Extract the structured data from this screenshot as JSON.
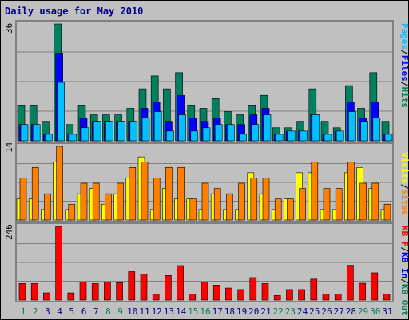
{
  "title": "Daily usage for May 2010",
  "colors": {
    "hits": "#00805c",
    "files": "#0000ff",
    "pages": "#00c0ff",
    "visits": "#ffff00",
    "sites": "#ff8000",
    "kbin": "#ff0000",
    "frame_bg": "#c0c0c0",
    "weekend_label": "#00805c",
    "weekday_label": "#00008b"
  },
  "chart_data": [
    {
      "type": "bar",
      "panel": "top",
      "ymax_label": "36",
      "ymax": 36,
      "legend": [
        "Pages",
        "/",
        "Files",
        "/",
        "Hits"
      ],
      "categories": [
        "1",
        "2",
        "3",
        "4",
        "5",
        "6",
        "7",
        "8",
        "9",
        "10",
        "11",
        "12",
        "13",
        "14",
        "15",
        "16",
        "17",
        "18",
        "19",
        "20",
        "21",
        "22",
        "23",
        "24",
        "25",
        "26",
        "27",
        "28",
        "29",
        "30",
        "31"
      ],
      "series": [
        {
          "name": "Hits",
          "values": [
            11,
            11,
            6,
            36,
            5,
            11,
            8,
            8,
            8,
            10,
            16,
            20,
            16,
            21,
            11,
            10,
            13,
            9,
            8,
            11,
            14,
            4,
            4,
            6,
            16,
            6,
            4,
            17,
            10,
            21,
            6
          ]
        },
        {
          "name": "Files",
          "values": [
            5,
            5,
            2,
            27,
            2,
            7,
            6,
            6,
            6,
            6,
            10,
            12,
            6,
            14,
            7,
            6,
            7,
            5,
            5,
            8,
            10,
            2,
            3,
            3,
            8,
            2,
            3,
            12,
            7,
            12,
            2
          ]
        },
        {
          "name": "Pages",
          "values": [
            5,
            5,
            2,
            18,
            2,
            4,
            6,
            6,
            6,
            6,
            7,
            9,
            3,
            8,
            3,
            4,
            5,
            5,
            2,
            5,
            8,
            2,
            3,
            3,
            8,
            2,
            3,
            9,
            6,
            7,
            2
          ]
        }
      ]
    },
    {
      "type": "bar",
      "panel": "middle",
      "ymax_label": "14",
      "ymax": 14,
      "legend": [
        "Visits",
        "/",
        "Sites"
      ],
      "categories": [
        "1",
        "2",
        "3",
        "4",
        "5",
        "6",
        "7",
        "8",
        "9",
        "10",
        "11",
        "12",
        "13",
        "14",
        "15",
        "16",
        "17",
        "18",
        "19",
        "20",
        "21",
        "22",
        "23",
        "24",
        "25",
        "26",
        "27",
        "28",
        "29",
        "30",
        "31"
      ],
      "series": [
        {
          "name": "Visits",
          "values": [
            4,
            4,
            2,
            11,
            2,
            5,
            6,
            3,
            5,
            8,
            12,
            2,
            6,
            4,
            4,
            2,
            5,
            2,
            2,
            9,
            5,
            2,
            4,
            9,
            9,
            2,
            2,
            9,
            10,
            6,
            2
          ]
        },
        {
          "name": "Sites",
          "values": [
            8,
            10,
            5,
            14,
            3,
            7,
            7,
            5,
            7,
            10,
            11,
            8,
            10,
            10,
            4,
            7,
            6,
            5,
            7,
            8,
            8,
            4,
            4,
            6,
            11,
            6,
            6,
            11,
            7,
            7,
            3
          ]
        }
      ]
    },
    {
      "type": "bar",
      "panel": "bottom",
      "ymax_label": "246",
      "ymax": 246,
      "legend": [
        "KB F",
        "/",
        "KB In",
        "/",
        "KB Out"
      ],
      "categories": [
        "1",
        "2",
        "3",
        "4",
        "5",
        "6",
        "7",
        "8",
        "9",
        "10",
        "11",
        "12",
        "13",
        "14",
        "15",
        "16",
        "17",
        "18",
        "19",
        "20",
        "21",
        "22",
        "23",
        "24",
        "25",
        "26",
        "27",
        "28",
        "29",
        "30",
        "31"
      ],
      "series": [
        {
          "name": "KB F",
          "values": [
            55,
            55,
            24,
            246,
            24,
            60,
            55,
            60,
            58,
            95,
            87,
            20,
            82,
            115,
            20,
            60,
            50,
            40,
            35,
            75,
            55,
            15,
            35,
            35,
            70,
            20,
            20,
            116,
            56,
            91,
            20
          ]
        }
      ]
    }
  ],
  "weekend_days": [
    "1",
    "2",
    "8",
    "9",
    "15",
    "16",
    "22",
    "23",
    "29",
    "30"
  ]
}
